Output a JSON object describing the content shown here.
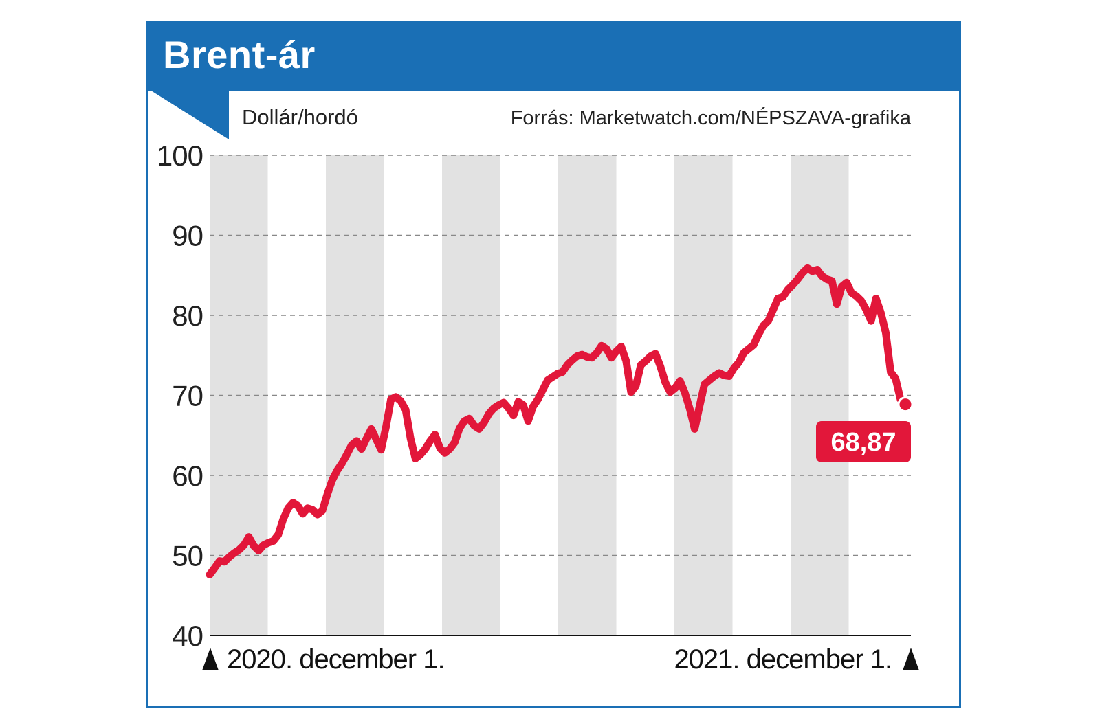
{
  "header": {
    "title": "Brent-ár"
  },
  "colors": {
    "accent": "#1a6fb5",
    "line": "#e2173a",
    "band": "#e2e2e2",
    "grid": "#888888"
  },
  "chart_data": {
    "type": "line",
    "title": "Brent-ár",
    "ylabel": "Dollár/hordó",
    "source": "Forrás: Marketwatch.com/NÉPSZAVA-grafika",
    "ylim": [
      40,
      100
    ],
    "yticks": [
      "100",
      "90",
      "80",
      "70",
      "60",
      "50",
      "40"
    ],
    "x_start_label": "2020. december 1.",
    "x_end_label": "2021. december 1.",
    "last_value_label": "68,87",
    "series": [
      {
        "name": "Brent",
        "values": [
          47.6,
          48.4,
          49.3,
          49.2,
          49.8,
          50.3,
          50.7,
          51.3,
          52.3,
          51.2,
          50.6,
          51.3,
          51.6,
          51.8,
          52.6,
          54.5,
          55.9,
          56.6,
          56.2,
          55.2,
          55.9,
          55.7,
          55.1,
          55.6,
          57.6,
          59.4,
          60.6,
          61.5,
          62.6,
          63.8,
          64.3,
          63.3,
          64.6,
          65.8,
          64.5,
          63.2,
          66.1,
          69.5,
          69.8,
          69.3,
          68.2,
          64.6,
          62.1,
          62.6,
          63.3,
          64.3,
          65.1,
          63.4,
          62.8,
          63.3,
          64.1,
          65.9,
          66.8,
          67.1,
          66.2,
          65.8,
          66.6,
          67.7,
          68.4,
          68.8,
          69.1,
          68.4,
          67.5,
          69.2,
          68.8,
          66.8,
          68.6,
          69.5,
          70.7,
          71.9,
          72.3,
          72.7,
          72.9,
          73.8,
          74.4,
          74.9,
          75.1,
          74.8,
          74.7,
          75.3,
          76.2,
          75.8,
          74.7,
          75.5,
          76.1,
          74.3,
          70.4,
          71.2,
          73.8,
          74.3,
          74.9,
          75.2,
          73.6,
          71.6,
          70.4,
          70.9,
          71.8,
          70.3,
          68.3,
          65.8,
          68.7,
          71.4,
          71.9,
          72.4,
          72.8,
          72.5,
          72.4,
          73.4,
          74.1,
          75.3,
          75.8,
          76.3,
          77.6,
          78.7,
          79.3,
          80.7,
          82.1,
          82.3,
          83.2,
          83.8,
          84.5,
          85.3,
          85.9,
          85.5,
          85.7,
          84.9,
          84.5,
          84.3,
          81.4,
          83.6,
          84.1,
          82.8,
          82.4,
          81.8,
          80.7,
          79.3,
          82.1,
          80.3,
          77.8,
          72.9,
          72.1,
          69.5,
          68.87
        ]
      }
    ]
  }
}
